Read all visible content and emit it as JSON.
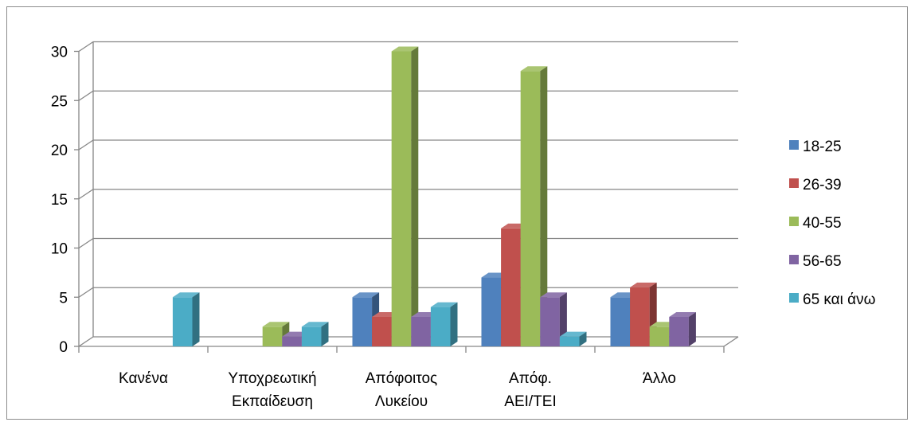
{
  "chart_data": {
    "type": "bar",
    "categories": [
      [
        "Κανένα"
      ],
      [
        "Υποχρεωτική",
        "Εκπαίδευση"
      ],
      [
        "Απόφοιτος",
        "Λυκείου"
      ],
      [
        "Απόφ.",
        "ΑΕΙ/ΤΕΙ"
      ],
      [
        "Άλλο"
      ]
    ],
    "series": [
      {
        "name": "18-25",
        "color": "#4F81BD",
        "values": [
          0,
          0,
          5,
          7,
          5
        ]
      },
      {
        "name": "26-39",
        "color": "#C0504D",
        "values": [
          0,
          0,
          3,
          12,
          6
        ]
      },
      {
        "name": "40-55",
        "color": "#9BBB59",
        "values": [
          0,
          2,
          30,
          28,
          2
        ]
      },
      {
        "name": "56-65",
        "color": "#8064A2",
        "values": [
          0,
          1,
          3,
          5,
          3
        ]
      },
      {
        "name": "65 και άνω",
        "color": "#4BACC6",
        "values": [
          5,
          2,
          4,
          1,
          0
        ]
      }
    ],
    "yticks": [
      0,
      5,
      10,
      15,
      20,
      25,
      30
    ],
    "ylim": [
      0,
      30
    ],
    "grid": true,
    "legend": "right",
    "style": "3d-clustered"
  }
}
